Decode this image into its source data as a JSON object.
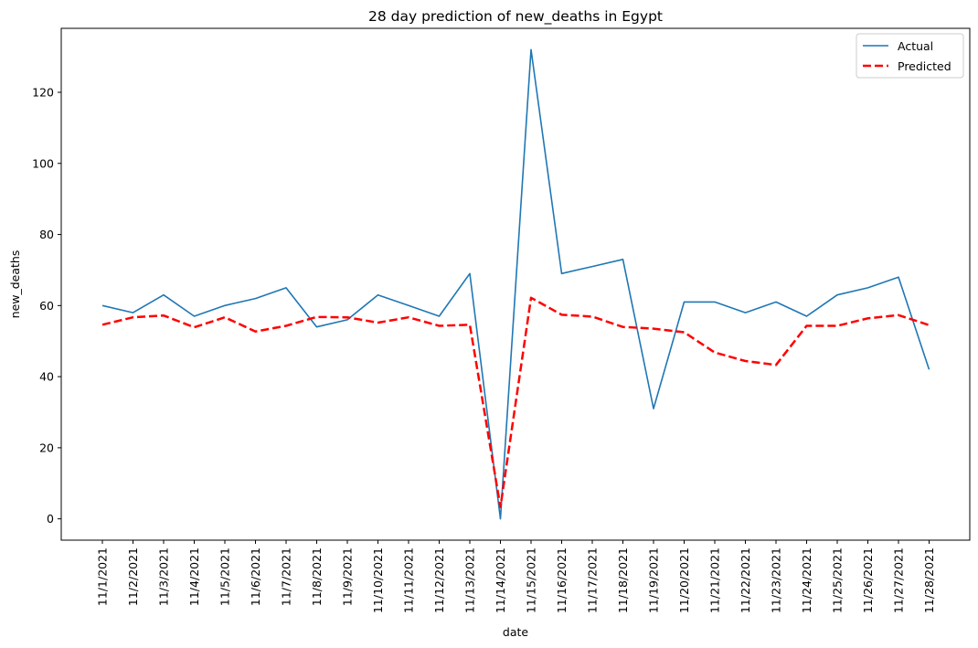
{
  "chart_data": {
    "type": "line",
    "title": "28 day prediction of new_deaths in Egypt",
    "xlabel": "date",
    "ylabel": "new_deaths",
    "ylim": [
      -6,
      138
    ],
    "yticks": [
      0,
      20,
      40,
      60,
      80,
      100,
      120
    ],
    "grid": false,
    "legend_position": "top-right",
    "categories": [
      "11/1/2021",
      "11/2/2021",
      "11/3/2021",
      "11/4/2021",
      "11/5/2021",
      "11/6/2021",
      "11/7/2021",
      "11/8/2021",
      "11/9/2021",
      "11/10/2021",
      "11/11/2021",
      "11/12/2021",
      "11/13/2021",
      "11/14/2021",
      "11/15/2021",
      "11/16/2021",
      "11/17/2021",
      "11/18/2021",
      "11/19/2021",
      "11/20/2021",
      "11/21/2021",
      "11/22/2021",
      "11/23/2021",
      "11/24/2021",
      "11/25/2021",
      "11/26/2021",
      "11/27/2021",
      "11/28/2021"
    ],
    "series": [
      {
        "name": "Actual",
        "color": "#1f77b4",
        "style": "solid",
        "values": [
          60,
          58,
          63,
          57,
          60,
          62,
          65,
          54,
          56,
          63,
          60,
          57,
          69,
          0,
          132,
          69,
          71,
          73,
          31,
          61,
          61,
          58,
          61,
          57,
          63,
          65,
          68,
          42
        ]
      },
      {
        "name": "Predicted",
        "color": "#ff0000",
        "style": "dashed",
        "values": [
          54.6,
          56.7,
          57.2,
          53.9,
          56.7,
          52.7,
          54.3,
          56.8,
          56.7,
          55.2,
          56.7,
          54.3,
          54.6,
          3.3,
          62.2,
          57.4,
          56.9,
          54.0,
          53.5,
          52.5,
          46.8,
          44.4,
          43.3,
          54.3,
          54.3,
          56.4,
          57.3,
          54.5
        ]
      }
    ]
  }
}
